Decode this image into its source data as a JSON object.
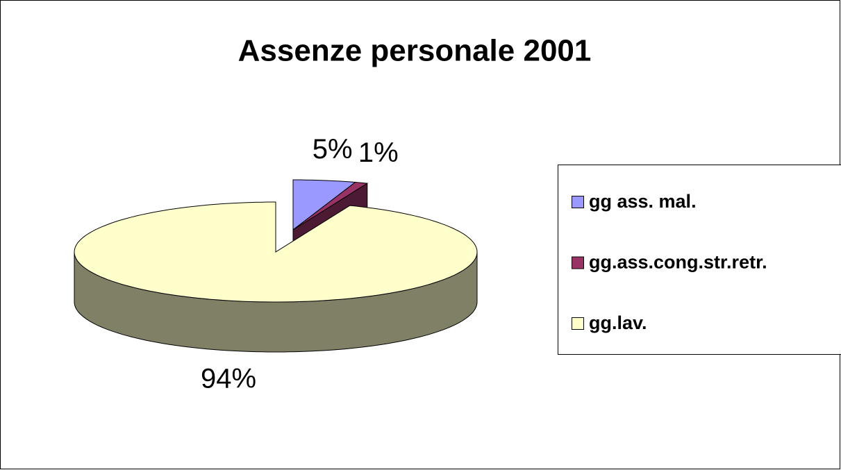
{
  "chart_data": {
    "type": "pie",
    "title": "Assenze personale 2001",
    "categories": [
      "gg ass. mal.",
      "gg.ass.cong.str.retr.",
      "gg.lav."
    ],
    "values": [
      5,
      1,
      94
    ],
    "value_labels": [
      "5%",
      "1%",
      "94%"
    ],
    "colors": [
      "#9999ff",
      "#993366",
      "#ffffcc"
    ],
    "legend": "right"
  }
}
